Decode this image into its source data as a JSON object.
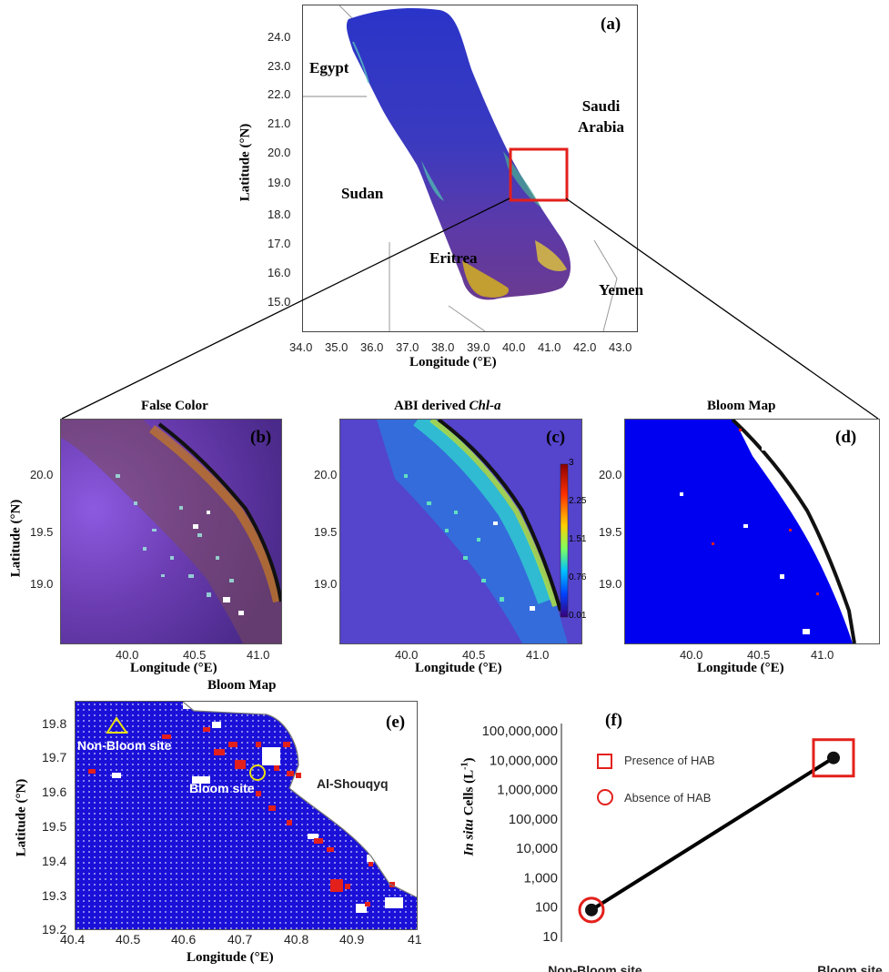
{
  "panel_a": {
    "tag": "(a)",
    "ylabel": "Latitude (°N)",
    "xlabel": "Longitude (°E)",
    "yticks": [
      "24.0",
      "23.0",
      "22.0",
      "21.0",
      "20.0",
      "19.0",
      "18.0",
      "17.0",
      "16.0",
      "15.0"
    ],
    "xticks": [
      "34.0",
      "35.0",
      "36.0",
      "37.0",
      "38.0",
      "39.0",
      "40.0",
      "41.0",
      "42.0",
      "43.0"
    ],
    "labels": {
      "egypt": "Egypt",
      "saudi": "Saudi\nArabia",
      "sudan": "Sudan",
      "eritrea": "Eritrea",
      "yemen": "Yemen"
    }
  },
  "panel_b": {
    "title": "False Color",
    "tag": "(b)",
    "xlabel": "Longitude (°E)",
    "ylabel": "Latitude (°N)",
    "yticks": [
      "20.0",
      "19.5",
      "19.0"
    ],
    "xticks": [
      "40.0",
      "40.5",
      "41.0"
    ]
  },
  "panel_c": {
    "title_prefix": "ABI derived ",
    "title_italic": "Chl-a",
    "tag": "(c)",
    "xlabel": "Longitude (°E)",
    "yticks": [
      "20.0",
      "19.5",
      "19.0"
    ],
    "xticks": [
      "40.0",
      "40.5",
      "41.0"
    ],
    "colorbar_ticks": [
      "3",
      "2.25",
      "1.51",
      "0.76",
      "0.01"
    ]
  },
  "panel_d": {
    "title": "Bloom Map",
    "tag": "(d)",
    "xlabel": "Longitude (°E)",
    "yticks": [
      "20.0",
      "19.5",
      "19.0"
    ],
    "xticks": [
      "40.0",
      "40.5",
      "41.0"
    ]
  },
  "panel_e": {
    "title": "Bloom Map",
    "tag": "(e)",
    "xlabel": "Longitude (°E)",
    "ylabel": "Latitude (°N)",
    "yticks": [
      "19.8",
      "19.7",
      "19.6",
      "19.5",
      "19.4",
      "19.3",
      "19.2"
    ],
    "xticks": [
      "40.4",
      "40.5",
      "40.6",
      "40.7",
      "40.8",
      "40.9",
      "41"
    ],
    "nonbloom_label": "Non-Bloom site",
    "bloom_label": "Bloom site",
    "place_label": "Al-Shouqyq"
  },
  "panel_f": {
    "tag": "(f)",
    "ylabel_italic": "In situ",
    "ylabel_rest": " Cells (L",
    "ylabel_sup": "-1",
    "ylabel_end": ")",
    "legend_presence": "Presence of HAB",
    "legend_absence": "Absence of HAB",
    "colors": {
      "marker": "#e3201b",
      "line": "#000000"
    }
  },
  "chart_data": {
    "type": "line",
    "categories": [
      "Non-Bloom site",
      "Bloom site"
    ],
    "values": [
      80,
      12000000
    ],
    "yscale": "log",
    "ylim": [
      10,
      100000000
    ],
    "yticks": [
      "100,000,000",
      "10,000,000",
      "1,000,000",
      "100,000",
      "10,000",
      "1,000",
      "100",
      "10"
    ]
  }
}
